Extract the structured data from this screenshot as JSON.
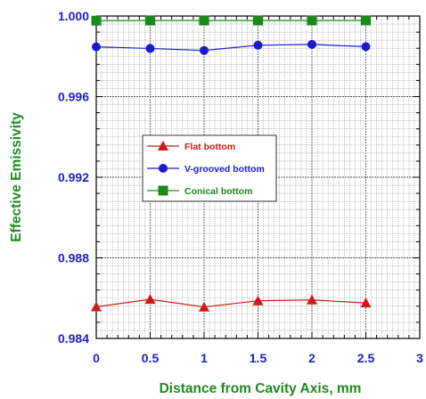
{
  "chart_data": {
    "type": "line",
    "title": "",
    "xlabel": "Distance from Cavity Axis, mm",
    "ylabel": "Effective Emissivity",
    "xlim": [
      0,
      3
    ],
    "ylim": [
      0.984,
      1.0
    ],
    "xticks": [
      "0",
      "0.5",
      "1",
      "1.5",
      "2",
      "2.5",
      "3"
    ],
    "yticks": [
      "0.984",
      "0.988",
      "0.992",
      "0.996",
      "1.000"
    ],
    "grid": true,
    "legend_position": "center-left",
    "x": [
      0,
      0.5,
      1,
      1.5,
      2,
      2.5
    ],
    "series": [
      {
        "name": "Flat bottom",
        "color": "#cc1a1a",
        "marker": "triangle",
        "values": [
          0.98557,
          0.98594,
          0.98556,
          0.98587,
          0.98591,
          0.98576
        ]
      },
      {
        "name": "V-grooved bottom",
        "color": "#1a1acc",
        "marker": "circle",
        "values": [
          0.99847,
          0.99839,
          0.99829,
          0.99855,
          0.99859,
          0.99848
        ]
      },
      {
        "name": "Conical bottom",
        "color": "#1a8a1a",
        "marker": "square",
        "values": [
          0.99977,
          0.99978,
          0.99978,
          0.99978,
          0.99978,
          0.99978
        ]
      }
    ]
  }
}
